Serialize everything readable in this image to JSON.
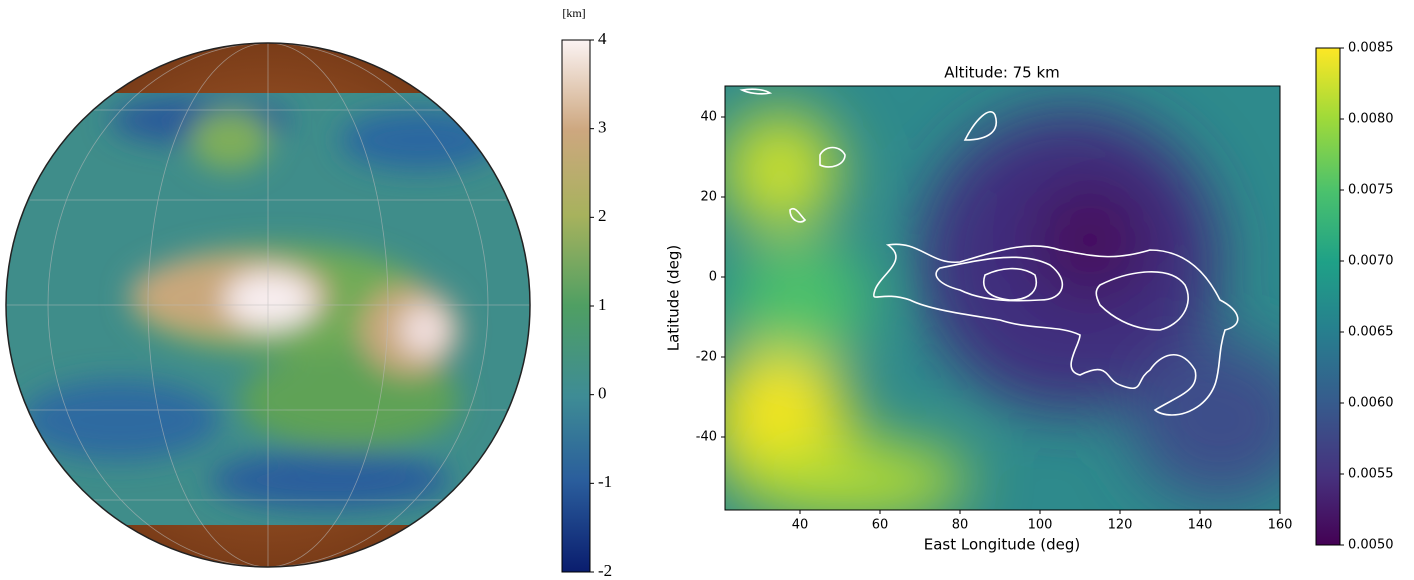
{
  "chart_data": [
    {
      "type": "map",
      "colorbar": {
        "label": "[km]",
        "lim": [
          -2,
          4
        ],
        "ticks": [
          -2,
          -1,
          0,
          1,
          2,
          3,
          4
        ]
      }
    },
    {
      "type": "heatmap",
      "title": "Altitude: 75 km",
      "xlabel": "East Longitude (deg)",
      "ylabel": "Latitude (deg)",
      "xlim": [
        21.25,
        160
      ],
      "ylim": [
        -58.25,
        47.75
      ],
      "xticks": [
        40,
        60,
        80,
        100,
        120,
        140,
        160
      ],
      "yticks": [
        -40,
        -20,
        0,
        20,
        40
      ],
      "colorbar": {
        "lim": [
          0.005,
          0.0085
        ],
        "ticks": [
          {
            "value": 0.005,
            "label": "0.0050"
          },
          {
            "value": 0.0055,
            "label": "0.0055"
          },
          {
            "value": 0.006,
            "label": "0.0060"
          },
          {
            "value": 0.0065,
            "label": "0.0065"
          },
          {
            "value": 0.007,
            "label": "0.0070"
          },
          {
            "value": 0.0075,
            "label": "0.0075"
          },
          {
            "value": 0.008,
            "label": "0.0080"
          },
          {
            "value": 0.0085,
            "label": "0.0085"
          }
        ]
      }
    }
  ]
}
